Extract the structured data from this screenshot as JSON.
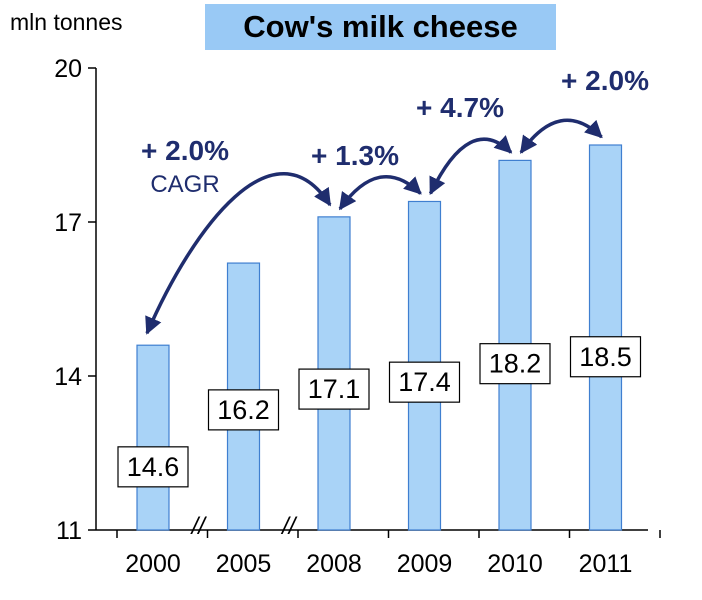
{
  "chart_data": {
    "type": "bar",
    "title": "Cow's milk cheese",
    "unit": "mln tonnes",
    "categories": [
      "2000",
      "2005",
      "2008",
      "2009",
      "2010",
      "2011"
    ],
    "values": [
      14.6,
      16.2,
      17.1,
      17.4,
      18.2,
      18.5
    ],
    "data_labels": [
      "14.6",
      "16.2",
      "17.1",
      "17.4",
      "18.2",
      "18.5"
    ],
    "ylim": [
      11,
      20
    ],
    "yticks": [
      11,
      14,
      17,
      20
    ],
    "grid": false,
    "legend": "none",
    "axis_breaks_after": [
      "2000",
      "2005"
    ],
    "axis_break_symbol": "//",
    "growth_annotations": [
      {
        "from": "2000",
        "to": "2008",
        "text": "+ 2.0%",
        "subtext": "CAGR"
      },
      {
        "from": "2008",
        "to": "2009",
        "text": "+ 1.3%",
        "subtext": ""
      },
      {
        "from": "2009",
        "to": "2010",
        "text": "+ 4.7%",
        "subtext": ""
      },
      {
        "from": "2010",
        "to": "2011",
        "text": "+ 2.0%",
        "subtext": ""
      }
    ],
    "colors": {
      "bar_fill": "#a9d3f7",
      "bar_stroke": "#3f7fd0",
      "title_background": "#99c9f5",
      "annotation": "#1f2d6e",
      "label_box_fill": "#ffffff",
      "label_box_stroke": "#000000",
      "text": "#000000"
    }
  }
}
